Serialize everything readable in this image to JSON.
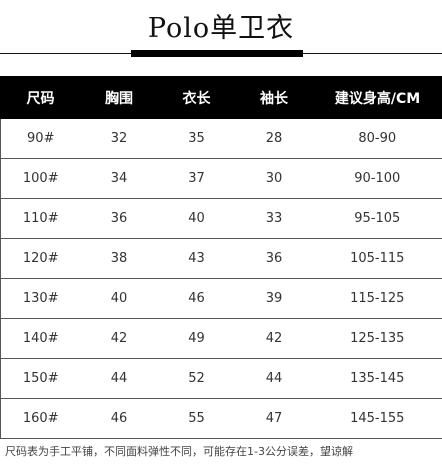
{
  "title": "Polo单卫衣",
  "headers": [
    "尺码",
    "胸围",
    "衣长",
    "袖长",
    "建议身高/CM"
  ],
  "rows": [
    [
      "90#",
      "32",
      "35",
      "28",
      "80-90"
    ],
    [
      "100#",
      "34",
      "37",
      "30",
      "90-100"
    ],
    [
      "110#",
      "36",
      "40",
      "33",
      "95-105"
    ],
    [
      "120#",
      "38",
      "43",
      "36",
      "105-115"
    ],
    [
      "130#",
      "40",
      "46",
      "39",
      "115-125"
    ],
    [
      "140#",
      "42",
      "49",
      "42",
      "125-135"
    ],
    [
      "150#",
      "44",
      "52",
      "44",
      "135-145"
    ],
    [
      "160#",
      "46",
      "55",
      "47",
      "145-155"
    ]
  ],
  "footnote": "尺码表为手工平铺，不同面料弹性不同，可能存在1-3公分误差，望谅解",
  "colors": {
    "header_bg": "#000000",
    "header_text": "#ffffff",
    "border": "#555555"
  }
}
